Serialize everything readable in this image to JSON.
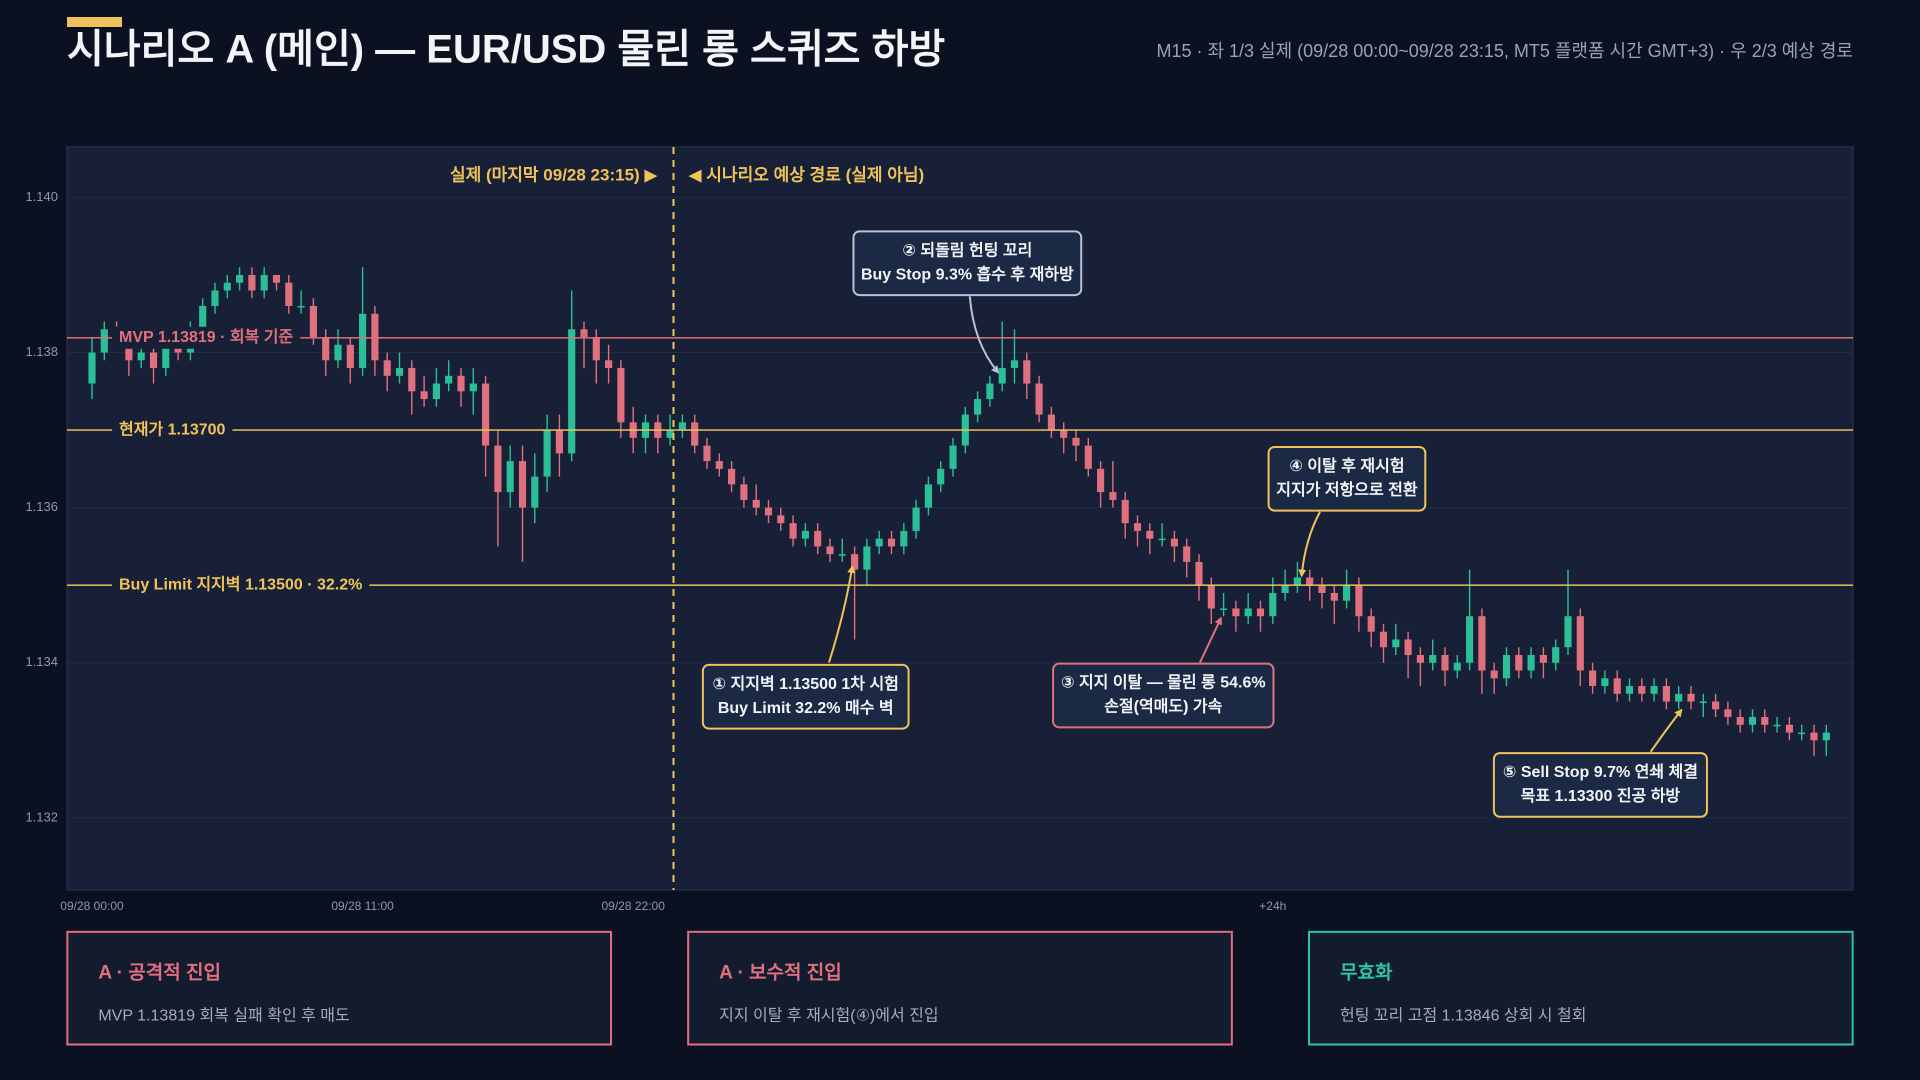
{
  "chart_data": {
    "type": "candlestick",
    "title": "시나리오 A (메인) — EUR/USD 물린 롱 스퀴즈 하방",
    "subtitle": "M15 · 좌 1/3 실제 (09/28 00:00~09/28 23:15, MT5 플랫폼 시간 GMT+3) · 우 2/3 예상 경로",
    "divider_labels": [
      "실제 (마지막 09/28 23:15) ▶",
      "◀ 시나리오 예상 경로 (실제 아님)"
    ],
    "up_color": "#2bbf97",
    "down_color": "#e0707e",
    "ylim": [
      1.13107,
      1.14065
    ],
    "yticks": [
      1.132,
      1.134,
      1.136,
      1.138,
      {
        "value": 1.14,
        "label": "1.140"
      }
    ],
    "grid": true,
    "categories": [
      "09/28 00:00",
      null,
      null,
      null,
      null,
      null,
      null,
      null,
      null,
      null,
      null,
      null,
      null,
      null,
      null,
      null,
      null,
      null,
      null,
      null,
      null,
      null,
      "09/28 11:00",
      null,
      null,
      null,
      null,
      null,
      null,
      null,
      null,
      null,
      null,
      null,
      null,
      null,
      null,
      null,
      null,
      null,
      null,
      null,
      null,
      null,
      "09/28 22:00",
      null,
      null,
      null,
      null,
      null,
      null,
      null,
      null,
      null,
      null,
      null,
      null,
      null,
      null,
      null,
      null,
      null,
      null,
      null,
      null,
      null,
      null,
      null,
      null,
      null,
      null,
      null,
      null,
      null,
      null,
      null,
      null,
      null,
      null,
      null,
      null,
      null,
      null,
      null,
      null,
      null,
      null,
      null,
      null,
      null,
      null,
      null,
      null,
      null,
      null,
      null,
      "+24h",
      null,
      null,
      null,
      null,
      null,
      null,
      null,
      null,
      null,
      null,
      null,
      null,
      null,
      null,
      null,
      null,
      null,
      null,
      null,
      null,
      null,
      null,
      null,
      null,
      null,
      null,
      null,
      null,
      null,
      null,
      null,
      null,
      null,
      null,
      null,
      null,
      null,
      null,
      null,
      null,
      null,
      null,
      null,
      null,
      null
    ],
    "candles": [
      [
        1.1376,
        1.1382,
        1.1374,
        1.138
      ],
      [
        1.138,
        1.1384,
        1.1379,
        1.1383
      ],
      [
        1.1383,
        1.1384,
        1.1381,
        1.1382
      ],
      [
        1.1382,
        1.1383,
        1.1377,
        1.1379
      ],
      [
        1.1379,
        1.1381,
        1.1378,
        1.138
      ],
      [
        1.138,
        1.1381,
        1.1376,
        1.1378
      ],
      [
        1.1378,
        1.1382,
        1.1377,
        1.1381
      ],
      [
        1.1381,
        1.1382,
        1.1379,
        1.138
      ],
      [
        1.138,
        1.1384,
        1.1379,
        1.1383
      ],
      [
        1.1383,
        1.1387,
        1.1382,
        1.1386
      ],
      [
        1.1386,
        1.1389,
        1.1385,
        1.1388
      ],
      [
        1.1388,
        1.139,
        1.1387,
        1.1389
      ],
      [
        1.1389,
        1.1391,
        1.1388,
        1.139
      ],
      [
        1.139,
        1.1391,
        1.1387,
        1.1388
      ],
      [
        1.1388,
        1.1391,
        1.1387,
        1.139
      ],
      [
        1.139,
        1.139,
        1.1388,
        1.1389
      ],
      [
        1.1389,
        1.139,
        1.1385,
        1.1386
      ],
      [
        1.1386,
        1.1388,
        1.1385,
        1.1386
      ],
      [
        1.1386,
        1.1387,
        1.1381,
        1.1382
      ],
      [
        1.1382,
        1.1383,
        1.1377,
        1.1379
      ],
      [
        1.1379,
        1.1383,
        1.1378,
        1.1381
      ],
      [
        1.1381,
        1.1382,
        1.1376,
        1.1378
      ],
      [
        1.1378,
        1.1391,
        1.1377,
        1.1385
      ],
      [
        1.1385,
        1.1386,
        1.1377,
        1.1379
      ],
      [
        1.1379,
        1.138,
        1.1375,
        1.1377
      ],
      [
        1.1377,
        1.138,
        1.1376,
        1.1378
      ],
      [
        1.1378,
        1.1379,
        1.1372,
        1.1375
      ],
      [
        1.1375,
        1.1377,
        1.1373,
        1.1374
      ],
      [
        1.1374,
        1.1378,
        1.1373,
        1.1376
      ],
      [
        1.1376,
        1.1379,
        1.1375,
        1.1377
      ],
      [
        1.1377,
        1.1378,
        1.1373,
        1.1375
      ],
      [
        1.1375,
        1.1378,
        1.1372,
        1.1376
      ],
      [
        1.1376,
        1.1377,
        1.1364,
        1.1368
      ],
      [
        1.1368,
        1.137,
        1.1355,
        1.1362
      ],
      [
        1.1362,
        1.1368,
        1.136,
        1.1366
      ],
      [
        1.1366,
        1.1368,
        1.1353,
        1.136
      ],
      [
        1.136,
        1.1367,
        1.1358,
        1.1364
      ],
      [
        1.1364,
        1.1372,
        1.1362,
        1.137
      ],
      [
        1.137,
        1.1372,
        1.1364,
        1.1367
      ],
      [
        1.1367,
        1.1388,
        1.1366,
        1.1383
      ],
      [
        1.1383,
        1.1384,
        1.1378,
        1.1382
      ],
      [
        1.1382,
        1.1383,
        1.1376,
        1.1379
      ],
      [
        1.1379,
        1.1381,
        1.1376,
        1.1378
      ],
      [
        1.1378,
        1.1379,
        1.1369,
        1.1371
      ],
      [
        1.1371,
        1.1373,
        1.1367,
        1.1369
      ],
      [
        1.1369,
        1.1372,
        1.1367,
        1.1371
      ],
      [
        1.1371,
        1.1372,
        1.1367,
        1.1369
      ],
      [
        1.1369,
        1.1372,
        1.1368,
        1.137
      ],
      [
        1.137,
        1.1372,
        1.1369,
        1.1371
      ],
      [
        1.1371,
        1.1372,
        1.1367,
        1.1368
      ],
      [
        1.1368,
        1.1369,
        1.1365,
        1.1366
      ],
      [
        1.1366,
        1.1367,
        1.1364,
        1.1365
      ],
      [
        1.1365,
        1.1366,
        1.1362,
        1.1363
      ],
      [
        1.1363,
        1.1364,
        1.136,
        1.1361
      ],
      [
        1.1361,
        1.1363,
        1.1359,
        1.136
      ],
      [
        1.136,
        1.1361,
        1.1358,
        1.1359
      ],
      [
        1.1359,
        1.136,
        1.1357,
        1.1358
      ],
      [
        1.1358,
        1.1359,
        1.1355,
        1.1356
      ],
      [
        1.1356,
        1.1358,
        1.1355,
        1.1357
      ],
      [
        1.1357,
        1.1358,
        1.1354,
        1.1355
      ],
      [
        1.1355,
        1.1356,
        1.1353,
        1.1354
      ],
      [
        1.1354,
        1.1356,
        1.1353,
        1.1354
      ],
      [
        1.1354,
        1.1355,
        1.1343,
        1.1352
      ],
      [
        1.1352,
        1.1356,
        1.135,
        1.1355
      ],
      [
        1.1355,
        1.1357,
        1.1354,
        1.1356
      ],
      [
        1.1356,
        1.1357,
        1.1354,
        1.1355
      ],
      [
        1.1355,
        1.1358,
        1.1354,
        1.1357
      ],
      [
        1.1357,
        1.1361,
        1.1356,
        1.136
      ],
      [
        1.136,
        1.1364,
        1.1359,
        1.1363
      ],
      [
        1.1363,
        1.1366,
        1.1362,
        1.1365
      ],
      [
        1.1365,
        1.1369,
        1.1364,
        1.1368
      ],
      [
        1.1368,
        1.1373,
        1.1367,
        1.1372
      ],
      [
        1.1372,
        1.1375,
        1.1371,
        1.1374
      ],
      [
        1.1374,
        1.1377,
        1.1373,
        1.1376
      ],
      [
        1.1376,
        1.1384,
        1.1375,
        1.1378
      ],
      [
        1.1378,
        1.1383,
        1.1376,
        1.1379
      ],
      [
        1.1379,
        1.138,
        1.1374,
        1.1376
      ],
      [
        1.1376,
        1.1377,
        1.1371,
        1.1372
      ],
      [
        1.1372,
        1.1373,
        1.1369,
        1.137
      ],
      [
        1.137,
        1.1371,
        1.1367,
        1.1369
      ],
      [
        1.1369,
        1.137,
        1.1366,
        1.1368
      ],
      [
        1.1368,
        1.1369,
        1.1364,
        1.1365
      ],
      [
        1.1365,
        1.1366,
        1.136,
        1.1362
      ],
      [
        1.1362,
        1.1366,
        1.136,
        1.1361
      ],
      [
        1.1361,
        1.1362,
        1.1356,
        1.1358
      ],
      [
        1.1358,
        1.1359,
        1.1355,
        1.1357
      ],
      [
        1.1357,
        1.1358,
        1.1354,
        1.1356
      ],
      [
        1.1356,
        1.1358,
        1.1355,
        1.1356
      ],
      [
        1.1356,
        1.1357,
        1.1353,
        1.1355
      ],
      [
        1.1355,
        1.1356,
        1.1351,
        1.1353
      ],
      [
        1.1353,
        1.1354,
        1.1348,
        1.135
      ],
      [
        1.135,
        1.1351,
        1.1345,
        1.1347
      ],
      [
        1.1347,
        1.1349,
        1.1346,
        1.1347
      ],
      [
        1.1347,
        1.1348,
        1.1344,
        1.1346
      ],
      [
        1.1346,
        1.1349,
        1.1345,
        1.1347
      ],
      [
        1.1347,
        1.1348,
        1.1344,
        1.1346
      ],
      [
        1.1346,
        1.1351,
        1.1345,
        1.1349
      ],
      [
        1.1349,
        1.1352,
        1.1348,
        1.135
      ],
      [
        1.135,
        1.1353,
        1.1349,
        1.1351
      ],
      [
        1.1351,
        1.1352,
        1.1348,
        1.135
      ],
      [
        1.135,
        1.1351,
        1.1347,
        1.1349
      ],
      [
        1.1349,
        1.135,
        1.1345,
        1.1348
      ],
      [
        1.1348,
        1.1352,
        1.1347,
        1.135
      ],
      [
        1.135,
        1.1351,
        1.1344,
        1.1346
      ],
      [
        1.1346,
        1.1347,
        1.1342,
        1.1344
      ],
      [
        1.1344,
        1.1345,
        1.134,
        1.1342
      ],
      [
        1.1342,
        1.1345,
        1.1341,
        1.1343
      ],
      [
        1.1343,
        1.1344,
        1.1338,
        1.1341
      ],
      [
        1.1341,
        1.1342,
        1.1337,
        1.134
      ],
      [
        1.134,
        1.1343,
        1.1339,
        1.1341
      ],
      [
        1.1341,
        1.1342,
        1.1337,
        1.1339
      ],
      [
        1.1339,
        1.1341,
        1.1338,
        1.134
      ],
      [
        1.134,
        1.1352,
        1.1339,
        1.1346
      ],
      [
        1.1346,
        1.1347,
        1.1336,
        1.1339
      ],
      [
        1.1339,
        1.134,
        1.1336,
        1.1338
      ],
      [
        1.1338,
        1.1342,
        1.1337,
        1.1341
      ],
      [
        1.1341,
        1.1342,
        1.1338,
        1.1339
      ],
      [
        1.1339,
        1.1342,
        1.1338,
        1.1341
      ],
      [
        1.1341,
        1.1342,
        1.1338,
        1.134
      ],
      [
        1.134,
        1.1343,
        1.1339,
        1.1342
      ],
      [
        1.1342,
        1.1352,
        1.1341,
        1.1346
      ],
      [
        1.1346,
        1.1347,
        1.1337,
        1.1339
      ],
      [
        1.1339,
        1.134,
        1.1336,
        1.1337
      ],
      [
        1.1337,
        1.1339,
        1.1336,
        1.1338
      ],
      [
        1.1338,
        1.1339,
        1.1335,
        1.1336
      ],
      [
        1.1336,
        1.1338,
        1.1335,
        1.1337
      ],
      [
        1.1337,
        1.1338,
        1.1335,
        1.1336
      ],
      [
        1.1336,
        1.1338,
        1.1335,
        1.1337
      ],
      [
        1.1337,
        1.1338,
        1.1334,
        1.1335
      ],
      [
        1.1335,
        1.1337,
        1.1334,
        1.1336
      ],
      [
        1.1336,
        1.1337,
        1.1334,
        1.1335
      ],
      [
        1.1335,
        1.1336,
        1.1333,
        1.1335
      ],
      [
        1.1335,
        1.1336,
        1.1333,
        1.1334
      ],
      [
        1.1334,
        1.1335,
        1.1332,
        1.1333
      ],
      [
        1.1333,
        1.1334,
        1.1331,
        1.1332
      ],
      [
        1.1332,
        1.1334,
        1.1331,
        1.1333
      ],
      [
        1.1333,
        1.1334,
        1.1331,
        1.1332
      ],
      [
        1.1332,
        1.1333,
        1.1331,
        1.1332
      ],
      [
        1.1332,
        1.1333,
        1.133,
        1.1331
      ],
      [
        1.1331,
        1.1332,
        1.133,
        1.1331
      ],
      [
        1.1331,
        1.1332,
        1.1328,
        1.133
      ],
      [
        1.133,
        1.1332,
        1.1328,
        1.1331
      ]
    ],
    "hlines": [
      {
        "label": "MVP 1.13819 · 회복 기준",
        "value": 1.13819,
        "color": "#e0707e"
      },
      {
        "label": "현재가 1.13700",
        "value": 1.137,
        "color": "#f0c35a"
      },
      {
        "label": "Buy Limit 지지벽 1.13500 · 32.2%",
        "value": 1.135,
        "color": "#f0c35a"
      }
    ],
    "annotations": [
      {
        "lines": [
          "① 지지벽 1.13500 1차 시험",
          "Buy Limit 32.2% 매수 벽"
        ],
        "color": "#f0c35a"
      },
      {
        "lines": [
          "② 되돌림 헌팅 꼬리",
          "Buy Stop 9.3% 흡수 후 재하방"
        ],
        "color": "#b8c2d6"
      },
      {
        "lines": [
          "③ 지지 이탈 — 물린 롱 54.6%",
          "손절(역매도) 가속"
        ],
        "color": "#e0707e"
      },
      {
        "lines": [
          "④ 이탈 후 재시험",
          "지지가 저항으로 전환"
        ],
        "color": "#f0c35a"
      },
      {
        "lines": [
          "⑤ Sell Stop 9.7% 연쇄 체결",
          "목표 1.13300 진공 하방"
        ],
        "color": "#f0c35a"
      }
    ]
  },
  "cards": [
    {
      "title": "A · 공격적 진입",
      "text": "MVP 1.13819 회복 실패 확인 후 매도",
      "color": "#e0707e"
    },
    {
      "title": "A · 보수적 진입",
      "text": "지지 이탈 후 재시험(④)에서 진입",
      "color": "#e0707e"
    },
    {
      "title": "무효화",
      "text": "헌팅 꼬리 고점 1.13846 상회 시 철회",
      "color": "#2ec4a0"
    }
  ]
}
